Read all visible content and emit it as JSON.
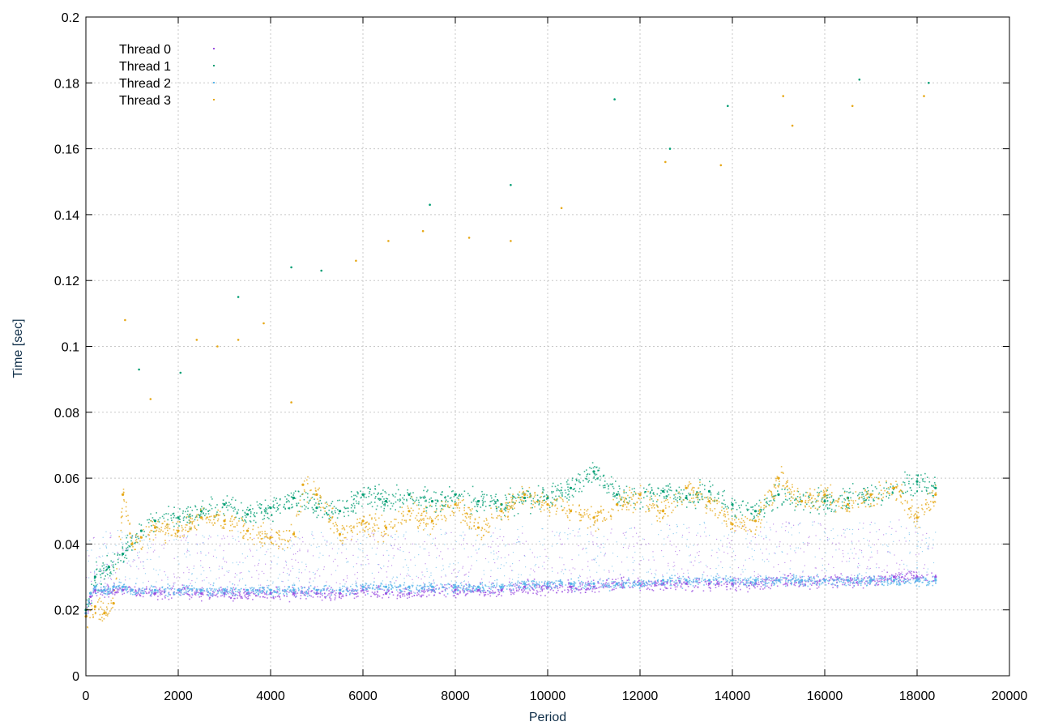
{
  "chart_data": {
    "type": "scatter",
    "title": "",
    "xlabel": "Period",
    "ylabel": "Time [sec]",
    "xlim": [
      0,
      20000
    ],
    "ylim": [
      0,
      0.2
    ],
    "x_ticks": [
      "0",
      "2000",
      "4000",
      "6000",
      "8000",
      "10000",
      "12000",
      "14000",
      "16000",
      "18000",
      "20000"
    ],
    "y_ticks": [
      "0",
      "0.02",
      "0.04",
      "0.06",
      "0.08",
      "0.1",
      "0.12",
      "0.14",
      "0.16",
      "0.18",
      "0.2"
    ],
    "x_tick_values": [
      0,
      2000,
      4000,
      6000,
      8000,
      10000,
      12000,
      14000,
      16000,
      18000,
      20000
    ],
    "y_tick_values": [
      0,
      0.02,
      0.04,
      0.06,
      0.08,
      0.1,
      0.12,
      0.14,
      0.16,
      0.18,
      0.2
    ],
    "grid": true,
    "legend_position": "top-left",
    "series": [
      {
        "name": "Thread 0",
        "color": "#9b4fe0",
        "points": [
          [
            0,
            0.019
          ],
          [
            100,
            0.024
          ],
          [
            200,
            0.026
          ],
          [
            400,
            0.026
          ],
          [
            600,
            0.026
          ],
          [
            800,
            0.026
          ],
          [
            1000,
            0.026
          ],
          [
            1500,
            0.025
          ],
          [
            2000,
            0.026
          ],
          [
            2500,
            0.025
          ],
          [
            3000,
            0.025
          ],
          [
            3500,
            0.025
          ],
          [
            4000,
            0.025
          ],
          [
            4500,
            0.025
          ],
          [
            5000,
            0.025
          ],
          [
            5500,
            0.025
          ],
          [
            6000,
            0.026
          ],
          [
            6500,
            0.025
          ],
          [
            7000,
            0.025
          ],
          [
            7500,
            0.026
          ],
          [
            8000,
            0.026
          ],
          [
            8500,
            0.026
          ],
          [
            9000,
            0.026
          ],
          [
            9500,
            0.027
          ],
          [
            10000,
            0.027
          ],
          [
            10500,
            0.027
          ],
          [
            11000,
            0.027
          ],
          [
            11500,
            0.028
          ],
          [
            12000,
            0.028
          ],
          [
            12500,
            0.028
          ],
          [
            13000,
            0.028
          ],
          [
            13500,
            0.028
          ],
          [
            14000,
            0.028
          ],
          [
            14500,
            0.028
          ],
          [
            15000,
            0.029
          ],
          [
            15500,
            0.029
          ],
          [
            16000,
            0.029
          ],
          [
            16500,
            0.029
          ],
          [
            17000,
            0.029
          ],
          [
            17500,
            0.03
          ],
          [
            18000,
            0.03
          ],
          [
            18400,
            0.03
          ]
        ]
      },
      {
        "name": "Thread 1",
        "color": "#009e73",
        "points": [
          [
            0,
            0.02
          ],
          [
            200,
            0.03
          ],
          [
            500,
            0.033
          ],
          [
            800,
            0.037
          ],
          [
            1000,
            0.04
          ],
          [
            1200,
            0.044
          ],
          [
            1500,
            0.047
          ],
          [
            2000,
            0.048
          ],
          [
            2500,
            0.05
          ],
          [
            3000,
            0.052
          ],
          [
            3500,
            0.049
          ],
          [
            4000,
            0.051
          ],
          [
            4500,
            0.054
          ],
          [
            5000,
            0.051
          ],
          [
            5500,
            0.05
          ],
          [
            6000,
            0.055
          ],
          [
            6500,
            0.053
          ],
          [
            7000,
            0.055
          ],
          [
            7500,
            0.053
          ],
          [
            8000,
            0.055
          ],
          [
            8500,
            0.053
          ],
          [
            9000,
            0.052
          ],
          [
            9500,
            0.054
          ],
          [
            10000,
            0.054
          ],
          [
            10500,
            0.057
          ],
          [
            11000,
            0.062
          ],
          [
            11500,
            0.055
          ],
          [
            12000,
            0.055
          ],
          [
            12500,
            0.056
          ],
          [
            13000,
            0.054
          ],
          [
            13500,
            0.056
          ],
          [
            14000,
            0.052
          ],
          [
            14500,
            0.05
          ],
          [
            15000,
            0.055
          ],
          [
            15500,
            0.053
          ],
          [
            16000,
            0.053
          ],
          [
            16500,
            0.054
          ],
          [
            17000,
            0.055
          ],
          [
            17500,
            0.057
          ],
          [
            18000,
            0.059
          ],
          [
            18400,
            0.057
          ]
        ]
      },
      {
        "name": "Thread 2",
        "color": "#56b4e9",
        "points": [
          [
            0,
            0.019
          ],
          [
            100,
            0.025
          ],
          [
            200,
            0.027
          ],
          [
            400,
            0.026
          ],
          [
            600,
            0.027
          ],
          [
            800,
            0.027
          ],
          [
            1000,
            0.026
          ],
          [
            1500,
            0.026
          ],
          [
            2000,
            0.026
          ],
          [
            2500,
            0.026
          ],
          [
            3000,
            0.026
          ],
          [
            3500,
            0.026
          ],
          [
            4000,
            0.026
          ],
          [
            4500,
            0.026
          ],
          [
            5000,
            0.026
          ],
          [
            5500,
            0.026
          ],
          [
            6000,
            0.027
          ],
          [
            6500,
            0.027
          ],
          [
            7000,
            0.027
          ],
          [
            7500,
            0.027
          ],
          [
            8000,
            0.027
          ],
          [
            8500,
            0.027
          ],
          [
            9000,
            0.027
          ],
          [
            9500,
            0.028
          ],
          [
            10000,
            0.028
          ],
          [
            10500,
            0.028
          ],
          [
            11000,
            0.028
          ],
          [
            11500,
            0.028
          ],
          [
            12000,
            0.028
          ],
          [
            12500,
            0.029
          ],
          [
            13000,
            0.029
          ],
          [
            13500,
            0.029
          ],
          [
            14000,
            0.029
          ],
          [
            14500,
            0.029
          ],
          [
            15000,
            0.029
          ],
          [
            15500,
            0.029
          ],
          [
            16000,
            0.029
          ],
          [
            16500,
            0.029
          ],
          [
            17000,
            0.029
          ],
          [
            17500,
            0.029
          ],
          [
            18000,
            0.029
          ],
          [
            18400,
            0.029
          ]
        ]
      },
      {
        "name": "Thread 3",
        "color": "#e6a817",
        "points": [
          [
            0,
            0.018
          ],
          [
            200,
            0.021
          ],
          [
            400,
            0.019
          ],
          [
            600,
            0.022
          ],
          [
            800,
            0.055
          ],
          [
            1000,
            0.04
          ],
          [
            1200,
            0.042
          ],
          [
            1500,
            0.045
          ],
          [
            2000,
            0.044
          ],
          [
            2500,
            0.048
          ],
          [
            3000,
            0.047
          ],
          [
            3500,
            0.044
          ],
          [
            4000,
            0.042
          ],
          [
            4500,
            0.043
          ],
          [
            4700,
            0.058
          ],
          [
            5000,
            0.055
          ],
          [
            5500,
            0.043
          ],
          [
            6000,
            0.047
          ],
          [
            6500,
            0.045
          ],
          [
            7000,
            0.05
          ],
          [
            7500,
            0.047
          ],
          [
            8000,
            0.052
          ],
          [
            8500,
            0.045
          ],
          [
            9000,
            0.05
          ],
          [
            9500,
            0.055
          ],
          [
            10000,
            0.052
          ],
          [
            10500,
            0.05
          ],
          [
            11000,
            0.048
          ],
          [
            11500,
            0.052
          ],
          [
            12000,
            0.055
          ],
          [
            12500,
            0.05
          ],
          [
            13000,
            0.057
          ],
          [
            13500,
            0.053
          ],
          [
            14000,
            0.046
          ],
          [
            14500,
            0.047
          ],
          [
            15000,
            0.06
          ],
          [
            15500,
            0.053
          ],
          [
            16000,
            0.055
          ],
          [
            16500,
            0.052
          ],
          [
            17000,
            0.055
          ],
          [
            17500,
            0.057
          ],
          [
            18000,
            0.048
          ],
          [
            18400,
            0.055
          ]
        ]
      }
    ],
    "outliers": [
      {
        "series": "Thread 3",
        "points": [
          [
            850,
            0.108
          ],
          [
            1400,
            0.084
          ],
          [
            2400,
            0.102
          ],
          [
            2850,
            0.1
          ],
          [
            3300,
            0.102
          ],
          [
            3850,
            0.107
          ],
          [
            4450,
            0.083
          ],
          [
            5850,
            0.126
          ],
          [
            6550,
            0.132
          ],
          [
            7300,
            0.135
          ],
          [
            8300,
            0.133
          ],
          [
            9200,
            0.132
          ],
          [
            10300,
            0.142
          ],
          [
            12550,
            0.156
          ],
          [
            13750,
            0.155
          ],
          [
            15100,
            0.176
          ],
          [
            15300,
            0.167
          ],
          [
            16600,
            0.173
          ],
          [
            18150,
            0.176
          ]
        ]
      },
      {
        "series": "Thread 1",
        "points": [
          [
            1150,
            0.093
          ],
          [
            2050,
            0.092
          ],
          [
            3300,
            0.115
          ],
          [
            4450,
            0.124
          ],
          [
            5100,
            0.123
          ],
          [
            7450,
            0.143
          ],
          [
            9200,
            0.149
          ],
          [
            11450,
            0.175
          ],
          [
            12650,
            0.16
          ],
          [
            13900,
            0.173
          ],
          [
            16750,
            0.181
          ],
          [
            18250,
            0.18
          ]
        ]
      }
    ]
  }
}
